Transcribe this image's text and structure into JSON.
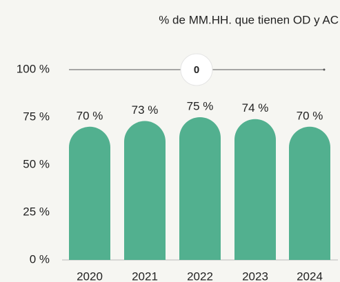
{
  "chart_data": {
    "type": "bar",
    "title": "% de MM.HH. que tienen OD y AC",
    "categories": [
      "2020",
      "2021",
      "2022",
      "2023",
      "2024"
    ],
    "values": [
      70,
      73,
      75,
      74,
      70
    ],
    "value_labels": [
      "70 %",
      "73 %",
      "75 %",
      "74 %",
      "70 %"
    ],
    "color": "#52b08f",
    "ylim": [
      0,
      100
    ],
    "yticks": [
      {
        "value": 0,
        "label": "0 %"
      },
      {
        "value": 25,
        "label": "25 %"
      },
      {
        "value": 50,
        "label": "50 %"
      },
      {
        "value": 75,
        "label": "75 %"
      },
      {
        "value": 100,
        "label": "100 %"
      }
    ],
    "reference_line": {
      "value": 100,
      "label": "0"
    },
    "grid": false
  }
}
